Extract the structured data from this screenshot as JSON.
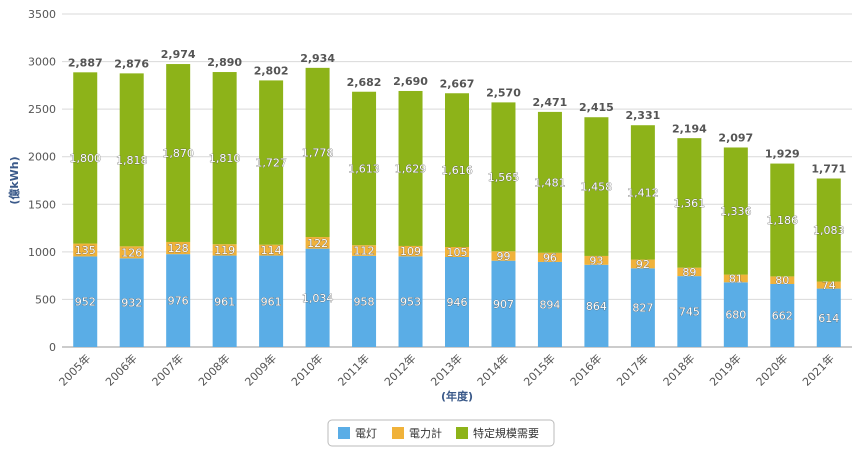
{
  "chart_data": {
    "type": "bar",
    "stacked": true,
    "categories": [
      "2005年",
      "2006年",
      "2007年",
      "2008年",
      "2009年",
      "2010年",
      "2011年",
      "2012年",
      "2013年",
      "2014年",
      "2015年",
      "2016年",
      "2017年",
      "2018年",
      "2019年",
      "2020年",
      "2021年"
    ],
    "series": [
      {
        "name": "電灯",
        "color": "#5aade6",
        "values": [
          952,
          932,
          976,
          961,
          961,
          1034,
          958,
          953,
          946,
          907,
          894,
          864,
          827,
          745,
          680,
          662,
          614
        ]
      },
      {
        "name": "電力計",
        "color": "#f0b23a",
        "values": [
          135,
          126,
          128,
          119,
          114,
          122,
          112,
          109,
          105,
          99,
          96,
          93,
          92,
          89,
          81,
          80,
          74
        ]
      },
      {
        "name": "特定規模需要",
        "color": "#8db319",
        "values": [
          1800,
          1818,
          1870,
          1810,
          1727,
          1778,
          1613,
          1629,
          1616,
          1565,
          1481,
          1458,
          1412,
          1361,
          1336,
          1186,
          1083
        ]
      }
    ],
    "totals": [
      2887,
      2876,
      2974,
      2890,
      2802,
      2934,
      2682,
      2690,
      2667,
      2570,
      2471,
      2415,
      2331,
      2194,
      2097,
      1929,
      1771
    ],
    "xlabel": "(年度)",
    "ylabel": "(億kWh)",
    "ylim": [
      0,
      3500
    ],
    "yticks": [
      0,
      500,
      1000,
      1500,
      2000,
      2500,
      3000,
      3500
    ],
    "grid": true,
    "legend_position": "bottom"
  }
}
